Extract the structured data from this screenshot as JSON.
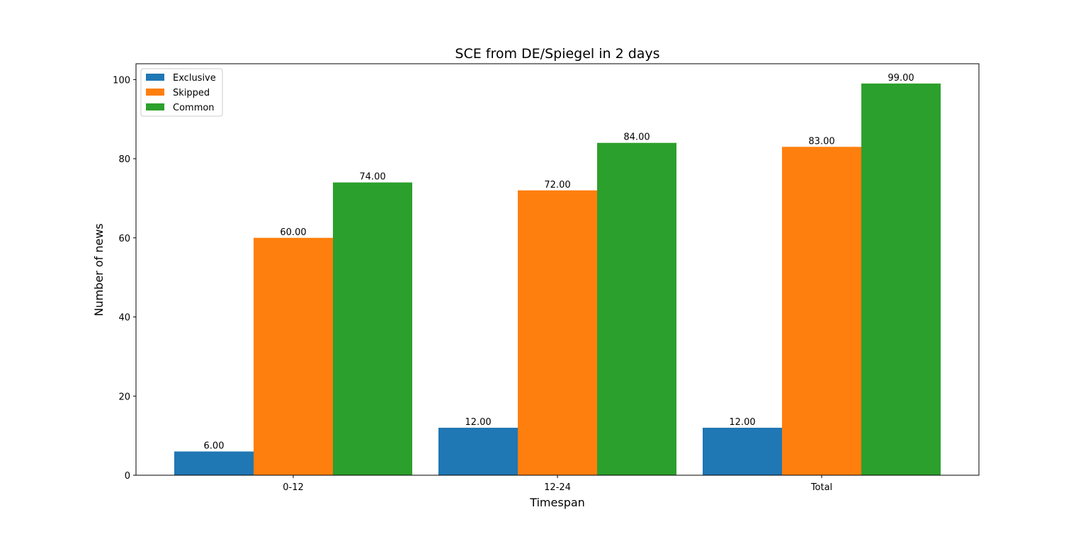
{
  "chart_data": {
    "type": "bar",
    "title": "SCE from DE/Spiegel in 2 days",
    "xlabel": "Timespan",
    "ylabel": "Number of news",
    "categories": [
      "0-12",
      "12-24",
      "Total"
    ],
    "series": [
      {
        "name": "Exclusive",
        "values": [
          6,
          12,
          12
        ],
        "color": "#1f77b4",
        "labels": [
          "6.00",
          "12.00",
          "12.00"
        ]
      },
      {
        "name": "Skipped",
        "values": [
          60,
          72,
          83
        ],
        "color": "#ff7f0e",
        "labels": [
          "60.00",
          "72.00",
          "83.00"
        ]
      },
      {
        "name": "Common",
        "values": [
          74,
          84,
          99
        ],
        "color": "#2ca02c",
        "labels": [
          "74.00",
          "84.00",
          "99.00"
        ]
      }
    ],
    "ylim": [
      0,
      104
    ],
    "yticks": [
      0,
      20,
      40,
      60,
      80,
      100
    ],
    "grid": false,
    "legend_position": "top-left"
  }
}
